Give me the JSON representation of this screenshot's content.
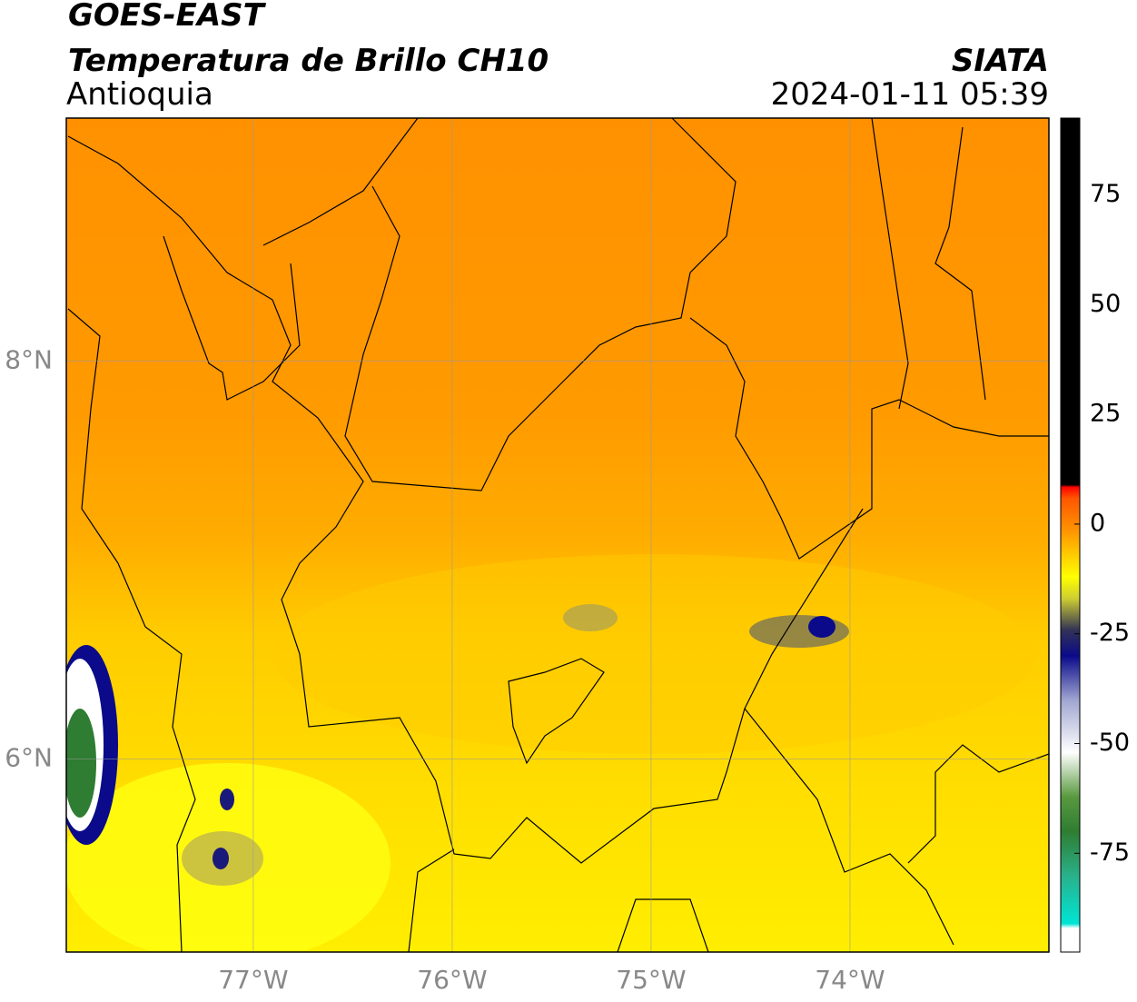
{
  "header": {
    "title": "GOES-EAST",
    "subtitle": "Temperatura de Brillo CH10",
    "region": "Antioquia",
    "source": "SIATA",
    "datetime": "2024-01-11 05:39"
  },
  "map": {
    "lonlim": [
      -77.94,
      -73.0
    ],
    "latlim": [
      5.03,
      9.22
    ],
    "lonticks": [
      {
        "value": -77,
        "label": "77°W"
      },
      {
        "value": -76,
        "label": "76°W"
      },
      {
        "value": -75,
        "label": "75°W"
      },
      {
        "value": -74,
        "label": "74°W"
      }
    ],
    "latticks": [
      {
        "value": 8,
        "label": "8°N"
      },
      {
        "value": 6,
        "label": "6°N"
      }
    ],
    "grid": true
  },
  "colorbar": {
    "lim": [
      -97.5,
      92.5
    ],
    "ticks": [
      75,
      50,
      25,
      0,
      -25,
      -50,
      -75
    ],
    "stops": [
      {
        "value": -97.5,
        "color": "#ffffff"
      },
      {
        "value": -92,
        "color": "#ffffff"
      },
      {
        "value": -91,
        "color": "#00e5d5"
      },
      {
        "value": -80,
        "color": "#2ab08a"
      },
      {
        "value": -70,
        "color": "#2e7d32"
      },
      {
        "value": -62,
        "color": "#5a9a40"
      },
      {
        "value": -52,
        "color": "#ffffff"
      },
      {
        "value": -40,
        "color": "#9fa5d0"
      },
      {
        "value": -30,
        "color": "#0a0a8a"
      },
      {
        "value": -24,
        "color": "#333355"
      },
      {
        "value": -17,
        "color": "#cccc33"
      },
      {
        "value": -12,
        "color": "#ffff00"
      },
      {
        "value": -2,
        "color": "#ff9900"
      },
      {
        "value": 6,
        "color": "#ff5500"
      },
      {
        "value": 8.5,
        "color": "#ff0000"
      },
      {
        "value": 9,
        "color": "#000000"
      },
      {
        "value": 92.5,
        "color": "#000000"
      }
    ]
  }
}
